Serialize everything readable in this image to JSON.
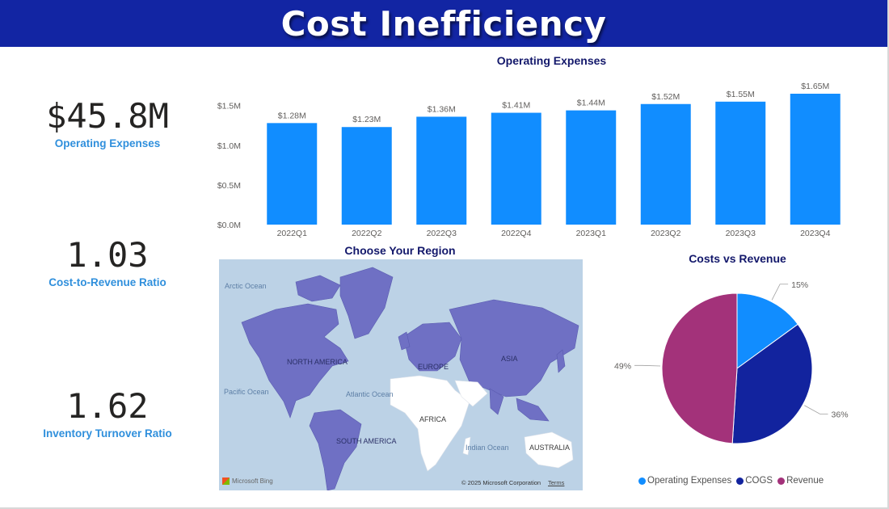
{
  "header": {
    "title": "Cost Inefficiency"
  },
  "kpis": {
    "operating_expenses": {
      "value": "$45.8M",
      "label": "Operating Expenses"
    },
    "cost_to_revenue": {
      "value": "1.03",
      "label": "Cost-to-Revenue Ratio"
    },
    "inventory_turnover": {
      "value": "1.62",
      "label": "Inventory Turnover Ratio"
    }
  },
  "map": {
    "title": "Choose Your Region",
    "labels": {
      "arctic": "Arctic Ocean",
      "north_america": "NORTH AMERICA",
      "europe": "EUROPE",
      "asia": "ASIA",
      "pacific": "Pacific Ocean",
      "atlantic": "Atlantic Ocean",
      "africa": "AFRICA",
      "south_america": "SOUTH AMERICA",
      "indian": "Indian Ocean",
      "australia": "AUSTRALIA"
    },
    "footer": {
      "brand": "Microsoft Bing",
      "copyright": "© 2025 Microsoft Corporation",
      "terms": "Terms"
    }
  },
  "colors": {
    "header": "#1225a3",
    "bar": "#118dff",
    "cogs": "#12239e",
    "revenue": "#a3327a",
    "kpi_label": "#2f8fdc",
    "map_land": "#6f70c4",
    "map_water": "#bcd2e6"
  },
  "chart_data": [
    {
      "type": "bar",
      "title": "Operating Expenses",
      "categories": [
        "2022Q1",
        "2022Q2",
        "2022Q3",
        "2022Q4",
        "2023Q1",
        "2023Q2",
        "2023Q3",
        "2023Q4"
      ],
      "values": [
        1.28,
        1.23,
        1.36,
        1.41,
        1.44,
        1.52,
        1.55,
        1.65
      ],
      "data_labels": [
        "$1.28M",
        "$1.23M",
        "$1.36M",
        "$1.41M",
        "$1.44M",
        "$1.52M",
        "$1.55M",
        "$1.65M"
      ],
      "y_ticks": [
        0,
        0.5,
        1.0,
        1.5
      ],
      "y_tick_labels": [
        "$0.0M",
        "$0.5M",
        "$1.0M",
        "$1.5M"
      ],
      "ylim": [
        0,
        1.65
      ],
      "grid": false,
      "color": "#118dff"
    },
    {
      "type": "pie",
      "title": "Costs vs Revenue",
      "labels": [
        "Operating Expenses",
        "COGS",
        "Revenue"
      ],
      "values": [
        15,
        36,
        49
      ],
      "data_labels": [
        "15%",
        "36%",
        "49%"
      ],
      "colors": [
        "#118dff",
        "#12239e",
        "#a3327a"
      ],
      "legend": "bottom"
    }
  ]
}
